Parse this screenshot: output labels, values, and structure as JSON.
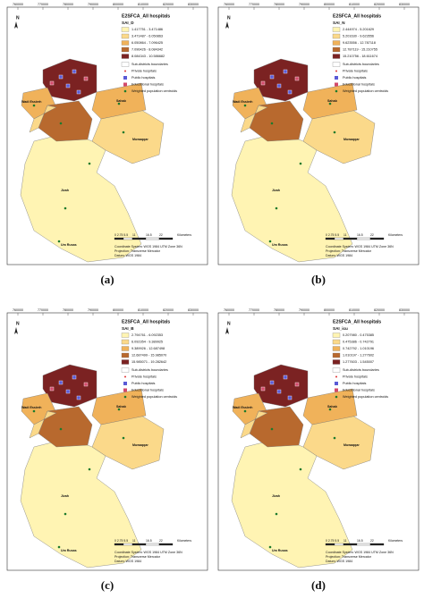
{
  "panels": [
    {
      "caption": "(a)",
      "title": "E2SFCA_All hospitals",
      "index": "SAI_D",
      "classes": [
        "1.417751 - 3.471486",
        "3.471487 - 6.050863",
        "6.050864 - 7.096425",
        "7.096426 - 8.084342",
        "8.084343 - 10.586682"
      ]
    },
    {
      "caption": "(b)",
      "title": "E2SFCA_All hospitals",
      "index": "SAI_N",
      "classes": [
        "2.444974 - 5.201629",
        "5.201630 - 9.623556",
        "9.623556 - 12.787118",
        "12.787119 - 15.210755",
        "15.210756 - 18.611674"
      ]
    },
    {
      "caption": "(c)",
      "title": "E2SFCA_All hospitals",
      "index": "SAI_B",
      "classes": [
        "2.794761 - 6.092353",
        "6.092354 - 9.389925",
        "9.389926 - 12.687498",
        "12.687499 - 15.985070",
        "15.985071 - 19.282642"
      ]
    },
    {
      "caption": "(d)",
      "title": "E2SFCA_All hospitals",
      "index": "SAI_icu",
      "classes": [
        "0.207980 - 0.475385",
        "0.475386 - 0.742791",
        "0.742792 - 1.010196",
        "1.010197 - 1.277602",
        "1.277603 - 1.545007"
      ]
    }
  ],
  "class_colors": [
    "#fff4b3",
    "#fbd98a",
    "#f0b25a",
    "#b8692e",
    "#7b2222"
  ],
  "legend_items": [
    "Sub-districts boundaries",
    "Private hospitals",
    "Public hospitals",
    "Educational hospitals",
    "Weighted population centroids"
  ],
  "x_ticks": [
    "760000",
    "770000",
    "780000",
    "790000",
    "800000",
    "810000",
    "820000",
    "830000"
  ],
  "scale_labels": [
    "0 2.75 5.5",
    "11",
    "16.5",
    "22",
    "Kilometers"
  ],
  "coordinate_info": [
    "Coordinate System: WGS 1984 UTM Zone 36N",
    "Projection: Transverse Mercator",
    "Datum: WGS 1984"
  ],
  "places": [
    "Wadi Essierh",
    "Sahab",
    "Muwaqqar",
    "Jizah",
    "Um Rusas"
  ]
}
